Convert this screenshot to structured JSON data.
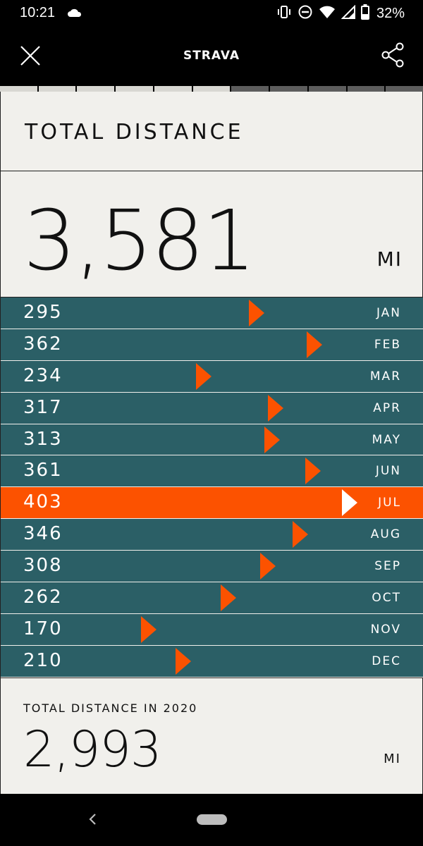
{
  "status_bar": {
    "time": "10:21",
    "battery": "32%",
    "icons": [
      "cloud-icon",
      "vibrate-icon",
      "do-not-disturb-icon",
      "wifi-icon",
      "signal-icon",
      "battery-icon"
    ]
  },
  "header": {
    "brand": "STRAVA",
    "close_icon": "close-icon",
    "share_icon": "share-icon"
  },
  "progress": {
    "segments_total": 11,
    "segments_done": 6
  },
  "card": {
    "title": "TOTAL DISTANCE",
    "total": "3,581",
    "unit": "MI",
    "months": [
      {
        "value": "295",
        "label": "JAN",
        "distance": 295,
        "active": false
      },
      {
        "value": "362",
        "label": "FEB",
        "distance": 362,
        "active": false
      },
      {
        "value": "234",
        "label": "MAR",
        "distance": 234,
        "active": false
      },
      {
        "value": "317",
        "label": "APR",
        "distance": 317,
        "active": false
      },
      {
        "value": "313",
        "label": "MAY",
        "distance": 313,
        "active": false
      },
      {
        "value": "361",
        "label": "JUN",
        "distance": 361,
        "active": false
      },
      {
        "value": "403",
        "label": "JUL",
        "distance": 403,
        "active": true
      },
      {
        "value": "346",
        "label": "AUG",
        "distance": 346,
        "active": false
      },
      {
        "value": "308",
        "label": "SEP",
        "distance": 308,
        "active": false
      },
      {
        "value": "262",
        "label": "OCT",
        "distance": 262,
        "active": false
      },
      {
        "value": "170",
        "label": "NOV",
        "distance": 170,
        "active": false
      },
      {
        "value": "210",
        "label": "DEC",
        "distance": 210,
        "active": false
      }
    ],
    "footer": {
      "label": "TOTAL DISTANCE IN 2020",
      "value": "2,993",
      "unit": "MI"
    }
  },
  "colors": {
    "accent": "#fc5200",
    "row": "#2b5f66",
    "card_bg": "#f1f0ec"
  },
  "nav": {
    "back_icon": "back-icon",
    "home_icon": "home-pill-icon"
  }
}
